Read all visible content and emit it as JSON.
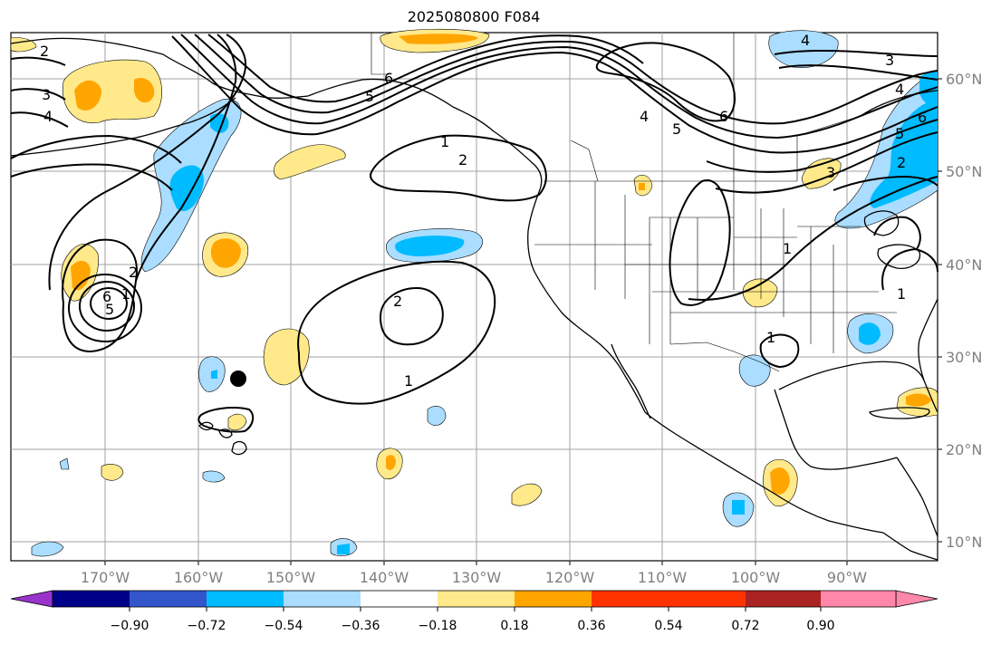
{
  "title": "2025080800 F084",
  "map": {
    "lon_ticks": [
      "170°W",
      "160°W",
      "150°W",
      "140°W",
      "130°W",
      "120°W",
      "110°W",
      "100°W",
      "90°W"
    ],
    "lat_ticks": [
      "60°N",
      "50°N",
      "40°N",
      "30°N",
      "20°N",
      "10°N"
    ],
    "contour_labels": [
      "2",
      "3",
      "4",
      "5",
      "6",
      "3",
      "4",
      "5",
      "6",
      "1",
      "2",
      "4",
      "5",
      "6",
      "2",
      "1",
      "1",
      "2",
      "5",
      "6",
      "4",
      "3",
      "2",
      "1",
      "1",
      "1"
    ]
  },
  "colorbar": {
    "ticks": [
      "−0.90",
      "−0.72",
      "−0.54",
      "−0.36",
      "−0.18",
      "0.18",
      "0.36",
      "0.54",
      "0.72",
      "0.90"
    ],
    "colors": [
      "#9933cc",
      "#000088",
      "#3355cc",
      "#00bbff",
      "#aaddff",
      "#ffffff",
      "#ffe98a",
      "#ffa500",
      "#ff3300",
      "#aa2222",
      "#ff88aa"
    ]
  }
}
